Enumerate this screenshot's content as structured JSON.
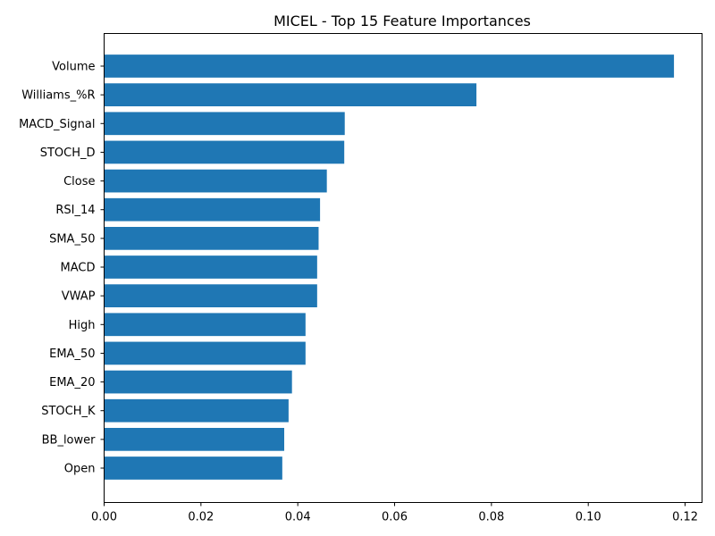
{
  "chart_data": {
    "type": "bar",
    "orientation": "horizontal",
    "title": "MICEL - Top 15 Feature Importances",
    "xlabel": "",
    "ylabel": "",
    "xlim": [
      0,
      0.1235
    ],
    "x_ticks": [
      "0.00",
      "0.02",
      "0.04",
      "0.06",
      "0.08",
      "0.10",
      "0.12"
    ],
    "categories": [
      "Volume",
      "Williams_%R",
      "MACD_Signal",
      "STOCH_D",
      "Close",
      "RSI_14",
      "SMA_50",
      "MACD",
      "VWAP",
      "High",
      "EMA_50",
      "EMA_20",
      "STOCH_K",
      "BB_lower",
      "Open"
    ],
    "values": [
      0.1177,
      0.0769,
      0.0497,
      0.0496,
      0.046,
      0.0446,
      0.0443,
      0.044,
      0.044,
      0.0416,
      0.0416,
      0.0388,
      0.0381,
      0.0372,
      0.0368
    ],
    "bar_color": "#1f77b4",
    "grid": false,
    "legend": "none"
  }
}
